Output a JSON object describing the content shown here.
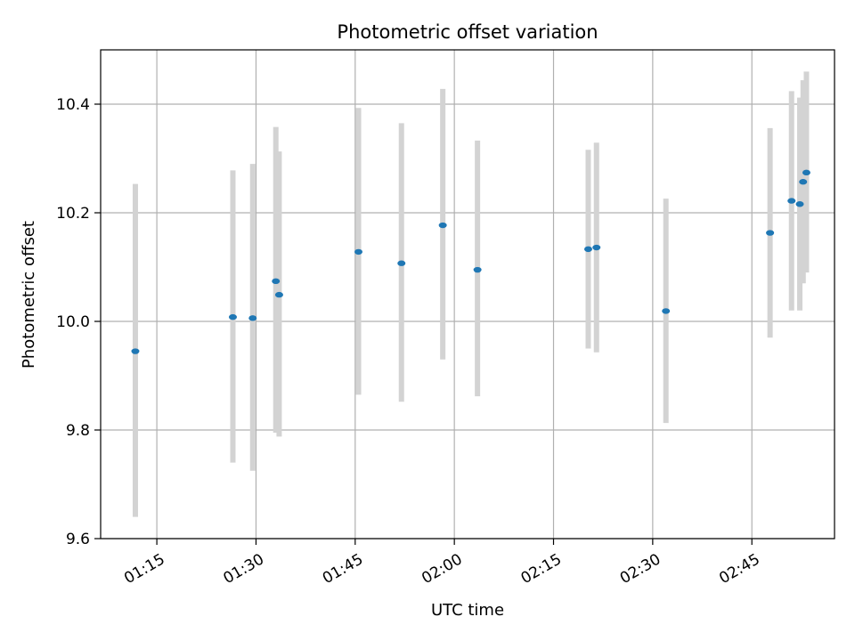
{
  "chart_data": {
    "type": "scatter",
    "title": "Photometric offset variation",
    "xlabel": "UTC time",
    "ylabel": "Photometric offset",
    "x_axis_type": "time",
    "x_ticks": [
      "01:15",
      "01:30",
      "01:45",
      "02:00",
      "02:15",
      "02:30",
      "02:45"
    ],
    "xlim": [
      "01:06:30",
      "02:57:30"
    ],
    "y_ticks": [
      "9.6",
      "9.8",
      "10.0",
      "10.2",
      "10.4"
    ],
    "ylim": [
      9.6,
      10.5
    ],
    "grid": true,
    "legend": false,
    "series": [
      {
        "marker": "point",
        "color": "#1f77b4",
        "errorbar_color": "#d3d3d3",
        "points": [
          {
            "x": "01:11:45",
            "y": 9.945,
            "low": 9.64,
            "high": 10.253
          },
          {
            "x": "01:26:30",
            "y": 10.008,
            "low": 9.74,
            "high": 10.278
          },
          {
            "x": "01:29:30",
            "y": 10.006,
            "low": 9.725,
            "high": 10.29
          },
          {
            "x": "01:33:00",
            "y": 10.074,
            "low": 9.795,
            "high": 10.358
          },
          {
            "x": "01:33:30",
            "y": 10.049,
            "low": 9.788,
            "high": 10.313
          },
          {
            "x": "01:45:30",
            "y": 10.128,
            "low": 9.865,
            "high": 10.393
          },
          {
            "x": "01:52:00",
            "y": 10.107,
            "low": 9.852,
            "high": 10.365
          },
          {
            "x": "01:58:15",
            "y": 10.177,
            "low": 9.93,
            "high": 10.428
          },
          {
            "x": "02:03:30",
            "y": 10.095,
            "low": 9.862,
            "high": 10.333
          },
          {
            "x": "02:20:15",
            "y": 10.133,
            "low": 9.95,
            "high": 10.316
          },
          {
            "x": "02:21:30",
            "y": 10.136,
            "low": 9.943,
            "high": 10.329
          },
          {
            "x": "02:32:00",
            "y": 10.019,
            "low": 9.813,
            "high": 10.226
          },
          {
            "x": "02:47:45",
            "y": 10.163,
            "low": 9.97,
            "high": 10.356
          },
          {
            "x": "02:51:00",
            "y": 10.222,
            "low": 10.02,
            "high": 10.424
          },
          {
            "x": "02:52:15",
            "y": 10.216,
            "low": 10.02,
            "high": 10.412
          },
          {
            "x": "02:52:45",
            "y": 10.257,
            "low": 10.07,
            "high": 10.444
          },
          {
            "x": "02:53:15",
            "y": 10.274,
            "low": 10.09,
            "high": 10.46
          }
        ]
      }
    ]
  }
}
